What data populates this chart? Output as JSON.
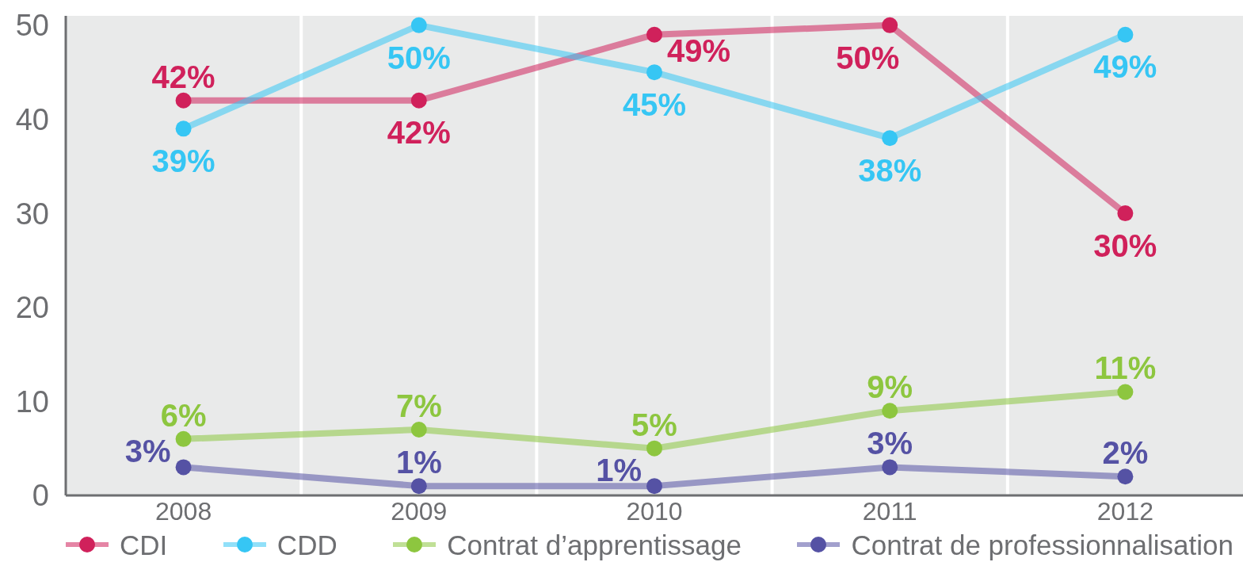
{
  "chart_data": {
    "type": "line",
    "categories": [
      "2008",
      "2009",
      "2010",
      "2011",
      "2012"
    ],
    "series": [
      {
        "name": "CDI",
        "color": "#d0215b",
        "values": [
          42,
          42,
          49,
          50,
          30
        ],
        "value_labels": [
          "42%",
          "42%",
          "49%",
          "50%",
          "30%"
        ]
      },
      {
        "name": "CDD",
        "color": "#36c6f4",
        "values": [
          39,
          50,
          45,
          38,
          49
        ],
        "value_labels": [
          "39%",
          "50%",
          "45%",
          "38%",
          "49%"
        ]
      },
      {
        "name": "Contrat d’apprentissage",
        "color": "#8dc63f",
        "values": [
          6,
          7,
          5,
          9,
          11
        ],
        "value_labels": [
          "6%",
          "7%",
          "5%",
          "9%",
          "11%"
        ]
      },
      {
        "name": "Contrat de professionnalisation",
        "color": "#5552a4",
        "values": [
          3,
          1,
          1,
          3,
          2
        ],
        "value_labels": [
          "3%",
          "1%",
          "1%",
          "3%",
          "2%"
        ]
      }
    ],
    "ylim": [
      0,
      51
    ],
    "yticks": [
      0,
      10,
      20,
      30,
      40,
      50
    ],
    "grid": "x",
    "legend": "bottom",
    "marker": "circle",
    "line_style": "solid"
  }
}
